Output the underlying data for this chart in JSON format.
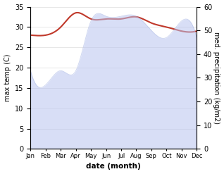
{
  "months": [
    "Jan",
    "Feb",
    "Mar",
    "Apr",
    "May",
    "Jun",
    "Jul",
    "Aug",
    "Sep",
    "Oct",
    "Nov",
    "Dec"
  ],
  "month_x": [
    0,
    1,
    2,
    3,
    4,
    5,
    6,
    7,
    8,
    9,
    10,
    11
  ],
  "temperature": [
    28.0,
    28.0,
    30.0,
    33.5,
    32.0,
    32.0,
    32.0,
    32.5,
    31.0,
    30.0,
    29.0,
    29.0
  ],
  "precipitation": [
    33.0,
    27.0,
    33.0,
    33.0,
    54.0,
    56.0,
    56.0,
    56.0,
    50.0,
    47.0,
    54.0,
    47.0
  ],
  "temp_color": "#c0392b",
  "precip_fill_color": "#b8c4f0",
  "precip_line_color": "#9aaae0",
  "ylim_left": [
    0,
    35
  ],
  "ylim_right": [
    0,
    60
  ],
  "yticks_left": [
    0,
    5,
    10,
    15,
    20,
    25,
    30,
    35
  ],
  "yticks_right": [
    0,
    10,
    20,
    30,
    40,
    50,
    60
  ],
  "xlabel": "date (month)",
  "ylabel_left": "max temp (C)",
  "ylabel_right": "med. precipitation (kg/m2)",
  "bg_color": "#ffffff",
  "grid_color": "#dddddd",
  "temp_linewidth": 1.5,
  "precip_alpha": 0.55
}
